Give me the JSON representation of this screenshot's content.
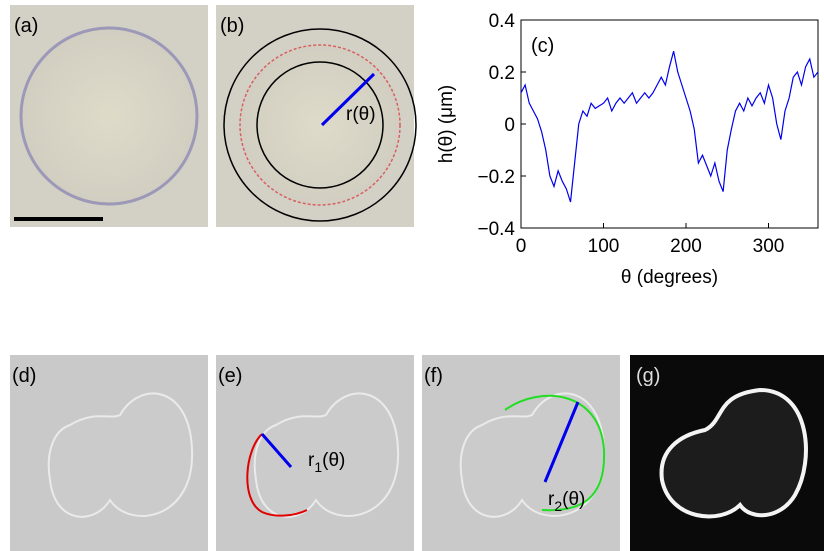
{
  "panels": {
    "a": "(a)",
    "b": "(b)",
    "d": "(d)",
    "e": "(e)",
    "f": "(f)",
    "g": "(g)"
  },
  "annotations": {
    "b": "r(θ)",
    "e": {
      "base": "r",
      "sub": "1",
      "rest": "(θ)"
    },
    "f": {
      "base": "r",
      "sub": "2",
      "rest": "(θ)"
    }
  },
  "chart_data": {
    "type": "line",
    "panel_label": "(c)",
    "x_label": "θ (degrees)",
    "y_label": "h(θ) (μm)",
    "xlim": [
      0,
      360
    ],
    "xticks": [
      0,
      100,
      200,
      300
    ],
    "ylim": [
      -0.4,
      0.4
    ],
    "yticks": [
      {
        "value": -0.4,
        "label": "−0.4"
      },
      {
        "value": -0.2,
        "label": "−0.2"
      },
      0,
      0.2,
      0.4
    ],
    "x": [
      0,
      5,
      10,
      15,
      20,
      25,
      30,
      35,
      40,
      45,
      50,
      55,
      60,
      65,
      70,
      75,
      80,
      85,
      90,
      95,
      100,
      105,
      110,
      115,
      120,
      125,
      130,
      135,
      140,
      145,
      150,
      155,
      160,
      165,
      170,
      175,
      180,
      185,
      190,
      195,
      200,
      205,
      210,
      215,
      220,
      225,
      230,
      235,
      240,
      245,
      250,
      255,
      260,
      265,
      270,
      275,
      280,
      285,
      290,
      295,
      300,
      305,
      310,
      315,
      320,
      325,
      330,
      335,
      340,
      345,
      350,
      355,
      360
    ],
    "series": [
      {
        "color": "#0000ee",
        "values": [
          0.12,
          0.15,
          0.08,
          0.05,
          0.02,
          -0.03,
          -0.1,
          -0.2,
          -0.24,
          -0.18,
          -0.22,
          -0.25,
          -0.3,
          -0.15,
          0.0,
          0.05,
          0.03,
          0.08,
          0.06,
          0.07,
          0.08,
          0.1,
          0.05,
          0.08,
          0.1,
          0.08,
          0.1,
          0.12,
          0.08,
          0.1,
          0.12,
          0.1,
          0.12,
          0.15,
          0.18,
          0.15,
          0.22,
          0.28,
          0.2,
          0.15,
          0.1,
          0.05,
          -0.02,
          -0.15,
          -0.12,
          -0.16,
          -0.2,
          -0.15,
          -0.22,
          -0.26,
          -0.1,
          -0.02,
          0.05,
          0.08,
          0.05,
          0.1,
          0.07,
          0.1,
          0.12,
          0.08,
          0.15,
          0.1,
          0.0,
          -0.06,
          0.05,
          0.1,
          0.18,
          0.2,
          0.15,
          0.22,
          0.25,
          0.18,
          0.2
        ]
      }
    ]
  }
}
